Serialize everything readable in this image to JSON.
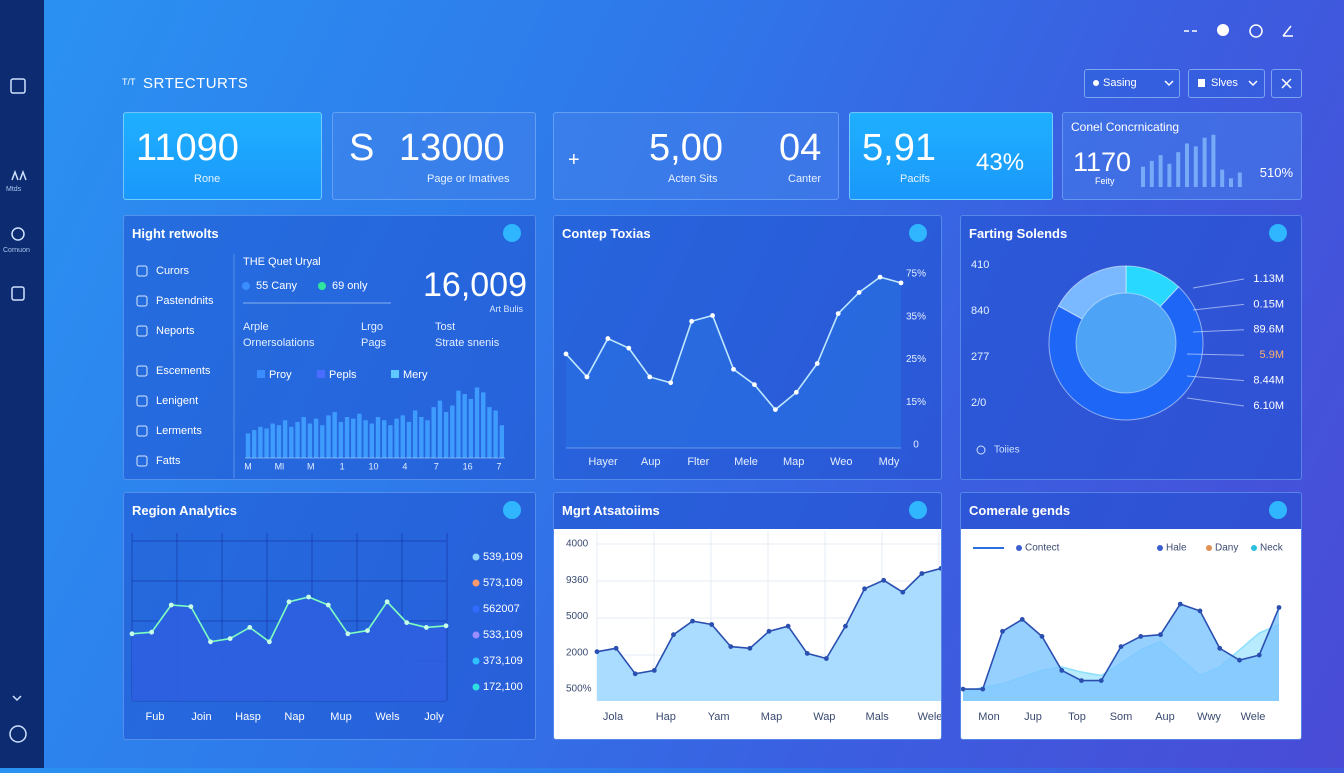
{
  "sidebar": {
    "labels": [
      "Mtds",
      "Cornuon"
    ]
  },
  "header": {
    "prefix": "T/T",
    "title": "SRTECTURTS",
    "controls": [
      "Sasing",
      "Slves"
    ]
  },
  "kpis": [
    {
      "value": "11090",
      "label": "Rone"
    },
    {
      "prefix": "S",
      "value": "13000",
      "label": "Page or Imatives"
    },
    {
      "prefix": "+",
      "value": "5,00",
      "label": "Acten Sits",
      "value2": "04",
      "label2": "Canter"
    },
    {
      "value": "5,91",
      "label": "Pacifs",
      "value2": "43%"
    },
    {
      "title": "Conel Concrnicating",
      "value": "1170",
      "label": "Feity",
      "value2": "510%",
      "bars": {
        "values": [
          35,
          45,
          55,
          40,
          60,
          75,
          70,
          85,
          90,
          30,
          15,
          25
        ],
        "ylim": [
          0,
          100
        ],
        "color": "#8fc4ff"
      }
    }
  ],
  "panels": {
    "highlights": {
      "title": "Hight retwolts",
      "menu": [
        "Curors",
        "Pastendnits",
        "Neports",
        "Escements",
        "Lenigent",
        "Lerments",
        "Fatts"
      ],
      "subtitle": "THE Quet Uryal",
      "legend_top": [
        {
          "label": "55 Cany",
          "color": "#3a8dff"
        },
        {
          "label": "69 only",
          "color": "#2ee6a0"
        }
      ],
      "big_value": "16,009",
      "big_label": "Art Bulis",
      "columns": [
        [
          "Arple",
          "Ornersolations"
        ],
        [
          "Lrgo",
          "Pags"
        ],
        [
          "Tost",
          "Strate snenis"
        ]
      ],
      "legend": [
        {
          "label": "Proy",
          "color": "#3a8dff"
        },
        {
          "label": "Pepls",
          "color": "#4a6cff"
        },
        {
          "label": "Mery",
          "color": "#5fc8ff"
        }
      ],
      "bars": {
        "type": "bar",
        "values": [
          30,
          34,
          38,
          36,
          42,
          40,
          46,
          38,
          44,
          50,
          42,
          48,
          40,
          52,
          56,
          44,
          50,
          48,
          54,
          46,
          42,
          50,
          46,
          40,
          48,
          52,
          44,
          58,
          50,
          46,
          62,
          70,
          56,
          64,
          82,
          78,
          72,
          86,
          80,
          62,
          58,
          40
        ],
        "ylim": [
          0,
          100
        ],
        "color": "#3f9cff",
        "x_labels": [
          "M",
          "Ml",
          "M",
          "1",
          "10",
          "4",
          "7",
          "16",
          "7"
        ]
      }
    },
    "content": {
      "title": "Contep Toxias",
      "chart": {
        "type": "area",
        "values": [
          49,
          37,
          57,
          52,
          37,
          34,
          66,
          69,
          41,
          33,
          20,
          29,
          44,
          70,
          81,
          89,
          86
        ],
        "ylim": [
          0,
          100
        ],
        "color": "#bfe8ff",
        "fill": "#2a6ee0",
        "y_labels": [
          "75%",
          "35%",
          "25%",
          "15%",
          "0"
        ],
        "x_labels": [
          "Hayer",
          "Aup",
          "Flter",
          "Mele",
          "Map",
          "Weo",
          "Mdy"
        ]
      }
    },
    "farting": {
      "title": "Farting Solends",
      "left_labels": [
        "410",
        "840",
        "277",
        "2/0"
      ],
      "donut": {
        "type": "pie",
        "values": [
          12,
          71,
          17
        ],
        "colors": [
          "#28d8ff",
          "#1e66f5",
          "#7ab8ff"
        ],
        "inner": "#4da3f5"
      },
      "right_labels": [
        {
          "label": "1.13M",
          "color": "#ffffff"
        },
        {
          "label": "0.15M",
          "color": "#ffffff"
        },
        {
          "label": "89.6M",
          "color": "#ffffff"
        },
        {
          "label": "5.9M",
          "color": "#ffb070"
        },
        {
          "label": "8.44M",
          "color": "#ffffff"
        },
        {
          "label": "6.10M",
          "color": "#ffffff"
        }
      ],
      "legend": "Toiies"
    },
    "region": {
      "title": "Region Analytics",
      "chart": {
        "type": "area",
        "values": [
          42,
          43,
          60,
          59,
          37,
          39,
          46,
          37,
          62,
          65,
          60,
          42,
          44,
          62,
          49,
          46,
          47
        ],
        "ylim": [
          0,
          100
        ],
        "color": "#7fffc0",
        "fill": "#2f5fe0",
        "x_labels": [
          "Fub",
          "Join",
          "Hasp",
          "Nap",
          "Mup",
          "Wels",
          "Joly"
        ]
      },
      "legend": [
        {
          "label": "539,109",
          "color": "#8fd6ff"
        },
        {
          "label": "573,109",
          "color": "#ff9a6a"
        },
        {
          "label": "562007",
          "color": "#2f6bff"
        },
        {
          "label": "533,109",
          "color": "#9b8cff"
        },
        {
          "label": "373,109",
          "color": "#2fc0ff"
        },
        {
          "label": "172,100",
          "color": "#2fe0e0"
        }
      ]
    },
    "mgrt": {
      "title": "Mgrt Atsatoiims",
      "chart": {
        "type": "area",
        "values": [
          29,
          31,
          16,
          18,
          39,
          47,
          45,
          32,
          31,
          41,
          44,
          28,
          25,
          44,
          66,
          71,
          64,
          75,
          78
        ],
        "ylim": [
          0,
          100
        ],
        "color": "#2a4fb0",
        "fill": "#a9dcff",
        "y_labels": [
          "4000",
          "9360",
          "5000",
          "2000",
          "500%"
        ],
        "x_labels": [
          "Jola",
          "Hap",
          "Yam",
          "Map",
          "Wap",
          "Mals",
          "Wele"
        ]
      }
    },
    "comerale": {
      "title": "Comerale gends",
      "legend": [
        {
          "label": "Contect",
          "color": "#3b5fd0"
        },
        {
          "label": "Hale",
          "color": "#3b5fd0"
        },
        {
          "label": "Dany",
          "color": "#e09050"
        },
        {
          "label": "Neck",
          "color": "#28c0e0"
        }
      ],
      "chart": {
        "type": "area",
        "series": [
          {
            "values": [
              5,
              8,
              10,
              14,
              18,
              20,
              17,
              15,
              22,
              30,
              35,
              25,
              15,
              20,
              30,
              40,
              45
            ],
            "color": "#8fe0ff",
            "fill": "#a8e6ff"
          },
          {
            "values": [
              7,
              7,
              41,
              48,
              38,
              18,
              12,
              12,
              32,
              38,
              39,
              57,
              53,
              31,
              24,
              27,
              55
            ],
            "color": "#2a4fb0",
            "fill": "#7cc4ff"
          }
        ],
        "ylim": [
          0,
          100
        ],
        "x_labels": [
          "Mon",
          "Jup",
          "Top",
          "Som",
          "Aup",
          "Wwy",
          "Wele"
        ]
      }
    }
  }
}
